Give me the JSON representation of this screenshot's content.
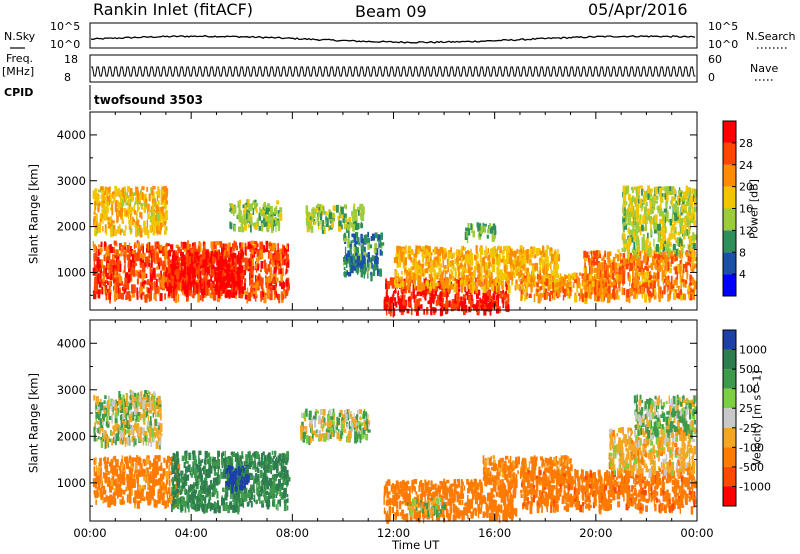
{
  "header": {
    "station": "Rankin Inlet (fitACF)",
    "beam": "Beam 09",
    "date": "05/Apr/2016"
  },
  "nsky_panel": {
    "left_label": "N.Sky",
    "right_label": "N.Search",
    "left_ticks": [
      "10^5",
      "10^0"
    ],
    "right_ticks": [
      "10^5",
      "10^0"
    ]
  },
  "freq_panel": {
    "left_label_1": "Freq.",
    "left_label_2": "[MHz]",
    "right_label": "Nave",
    "left_ticks": [
      "18",
      "8"
    ],
    "right_ticks": [
      "60",
      "0"
    ]
  },
  "cpid_panel": {
    "label": "CPID",
    "program": "twofsound 3503"
  },
  "chart_data": [
    {
      "type": "heatmap",
      "ylabel": "Slant Range [km]",
      "y_ticks": [
        "4000",
        "3000",
        "2000",
        "1000"
      ],
      "y_tick_values": [
        4000,
        3000,
        2000,
        1000
      ],
      "ylim": [
        180,
        4500
      ],
      "xlim": [
        0,
        24
      ],
      "colorbar_title": "Power [dB]",
      "colorbar_ticks": [
        "28",
        "24",
        "20",
        "16",
        "12",
        "8",
        "4"
      ],
      "colorbar_colors": [
        "#0000ff",
        "#1c4fa8",
        "#2f8f5a",
        "#9ccc3c",
        "#f2c500",
        "#ff8c00",
        "#ff4500",
        "#ff0000"
      ],
      "colorbar_range": [
        0,
        32
      ],
      "regions": [
        {
          "x": [
            0.1,
            7.8
          ],
          "y": [
            500,
            1700
          ],
          "v": 26
        },
        {
          "x": [
            3.0,
            6.0
          ],
          "y": [
            600,
            1500
          ],
          "v": 30
        },
        {
          "x": [
            0.1,
            3.0
          ],
          "y": [
            1900,
            2900
          ],
          "v": 19
        },
        {
          "x": [
            5.5,
            7.5
          ],
          "y": [
            2000,
            2600
          ],
          "v": 14
        },
        {
          "x": [
            8.5,
            10.8
          ],
          "y": [
            2000,
            2500
          ],
          "v": 14
        },
        {
          "x": [
            10.0,
            11.5
          ],
          "y": [
            1000,
            1900
          ],
          "v": 9
        },
        {
          "x": [
            11.6,
            16.5
          ],
          "y": [
            200,
            900
          ],
          "v": 29
        },
        {
          "x": [
            12.0,
            18.5
          ],
          "y": [
            700,
            1600
          ],
          "v": 20
        },
        {
          "x": [
            17.0,
            20.5
          ],
          "y": [
            500,
            1000
          ],
          "v": 22
        },
        {
          "x": [
            19.5,
            23.9
          ],
          "y": [
            500,
            1500
          ],
          "v": 23
        },
        {
          "x": [
            21.0,
            23.9
          ],
          "y": [
            1500,
            2900
          ],
          "v": 15
        },
        {
          "x": [
            14.8,
            16.0
          ],
          "y": [
            1800,
            2100
          ],
          "v": 12
        }
      ]
    },
    {
      "type": "heatmap",
      "ylabel": "Slant Range [km]",
      "y_ticks": [
        "4000",
        "3000",
        "2000",
        "1000"
      ],
      "y_tick_values": [
        4000,
        3000,
        2000,
        1000
      ],
      "ylim": [
        180,
        4500
      ],
      "xlim": [
        0,
        24
      ],
      "xlabel": "Time UT",
      "x_ticks": [
        "00:00",
        "04:00",
        "08:00",
        "12:00",
        "16:00",
        "20:00",
        "00:00"
      ],
      "x_tick_values": [
        0,
        4,
        8,
        12,
        16,
        20,
        24
      ],
      "colorbar_title": "Velocity [m s^-1]",
      "colorbar_ticks": [
        "1000",
        "500",
        "100",
        "25",
        "-25",
        "-100",
        "-500",
        "-1000"
      ],
      "colorbar_colors": [
        "#1c3fa8",
        "#2e7d4f",
        "#3c9a4a",
        "#7ccf40",
        "#c8c8c8",
        "#f5a623",
        "#ff7a00",
        "#ff4a00",
        "#ff0000"
      ],
      "colorbar_range": [
        -1200,
        1200
      ],
      "regions": [
        {
          "x": [
            0.1,
            2.8
          ],
          "y": [
            1900,
            2900
          ],
          "v": 0
        },
        {
          "x": [
            0.1,
            3.5
          ],
          "y": [
            600,
            1600
          ],
          "v": -450
        },
        {
          "x": [
            3.2,
            7.8
          ],
          "y": [
            500,
            1700
          ],
          "v": 350
        },
        {
          "x": [
            5.3,
            6.2
          ],
          "y": [
            900,
            1400
          ],
          "v": 900
        },
        {
          "x": [
            8.3,
            11.0
          ],
          "y": [
            2000,
            2600
          ],
          "v": 0
        },
        {
          "x": [
            11.6,
            16.8
          ],
          "y": [
            300,
            1100
          ],
          "v": -500
        },
        {
          "x": [
            12.5,
            14.0
          ],
          "y": [
            400,
            700
          ],
          "v": 0
        },
        {
          "x": [
            15.5,
            19.0
          ],
          "y": [
            1100,
            1600
          ],
          "v": -400
        },
        {
          "x": [
            17.0,
            23.9
          ],
          "y": [
            500,
            1300
          ],
          "v": -600
        },
        {
          "x": [
            20.5,
            23.9
          ],
          "y": [
            1300,
            2200
          ],
          "v": -150
        },
        {
          "x": [
            21.5,
            23.9
          ],
          "y": [
            2100,
            2900
          ],
          "v": 60
        },
        {
          "x": [
            1.0,
            2.5
          ],
          "y": [
            2700,
            3000
          ],
          "v": 0
        }
      ]
    }
  ]
}
